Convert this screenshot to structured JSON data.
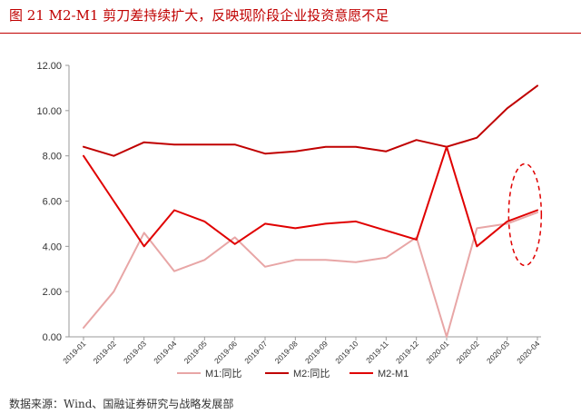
{
  "title": "图 21 M2-M1 剪刀差持续扩大，反映现阶段企业投资意愿不足",
  "source": "数据来源：Wind、国融证券研究与战略发展部",
  "colors": {
    "m1": "#e8a6a6",
    "m2": "#c00000",
    "diff": "#e00000",
    "axis": "#999999"
  },
  "chart_data": {
    "type": "line",
    "categories": [
      "2019-01",
      "2019-02",
      "2019-03",
      "2019-04",
      "2019-05",
      "2019-06",
      "2019-07",
      "2019-08",
      "2019-09",
      "2019-10",
      "2019-11",
      "2019-12",
      "2020-01",
      "2020-02",
      "2020-03",
      "2020-04"
    ],
    "yticks": [
      "0.00",
      "2.00",
      "4.00",
      "6.00",
      "8.00",
      "10.00",
      "12.00"
    ],
    "ylim": [
      0,
      12
    ],
    "grid": false,
    "legend_position": "bottom",
    "annotation": "dashed red ellipse around 2020-03 to 2020-04",
    "series": [
      {
        "name": "M1:同比",
        "color_key": "m1",
        "values": [
          0.4,
          2.0,
          4.6,
          2.9,
          3.4,
          4.4,
          3.1,
          3.4,
          3.4,
          3.3,
          3.5,
          4.4,
          0.0,
          4.8,
          5.0,
          5.5
        ]
      },
      {
        "name": "M2:同比",
        "color_key": "m2",
        "values": [
          8.4,
          8.0,
          8.6,
          8.5,
          8.5,
          8.5,
          8.1,
          8.2,
          8.4,
          8.4,
          8.2,
          8.7,
          8.4,
          8.8,
          10.1,
          11.1
        ]
      },
      {
        "name": "M2-M1",
        "color_key": "diff",
        "values": [
          8.0,
          6.0,
          4.0,
          5.6,
          5.1,
          4.1,
          5.0,
          4.8,
          5.0,
          5.1,
          4.7,
          4.3,
          8.4,
          4.0,
          5.1,
          5.6
        ]
      }
    ]
  }
}
